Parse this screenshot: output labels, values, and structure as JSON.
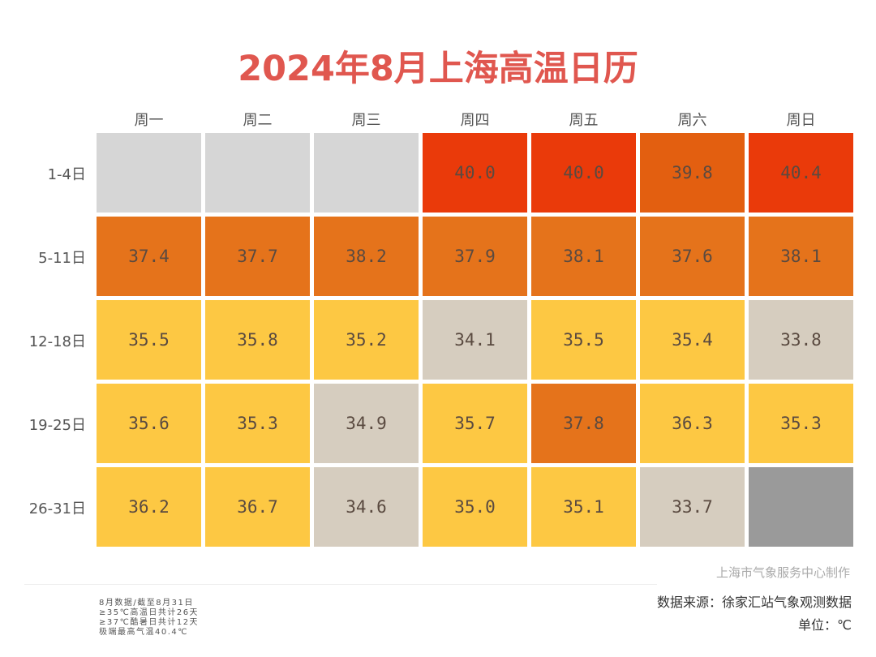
{
  "chart_data": {
    "type": "heatmap",
    "title": "2024年8月上海高温日历",
    "columns": [
      "周一",
      "周二",
      "周三",
      "周四",
      "周五",
      "周六",
      "周日"
    ],
    "rows": [
      "1-4日",
      "5-11日",
      "12-18日",
      "19-25日",
      "26-31日"
    ],
    "values": [
      [
        null,
        null,
        null,
        40.0,
        40.0,
        39.8,
        40.4
      ],
      [
        37.4,
        37.7,
        38.2,
        37.9,
        38.1,
        37.6,
        38.1
      ],
      [
        35.5,
        35.8,
        35.2,
        34.1,
        35.5,
        35.4,
        33.8
      ],
      [
        35.6,
        35.3,
        34.9,
        35.7,
        37.8,
        36.3,
        35.3
      ],
      [
        36.2,
        36.7,
        34.6,
        35.0,
        35.1,
        33.7,
        null
      ]
    ],
    "unit": "℃",
    "color_scale": [
      {
        "min": 40.0,
        "color": "#EA3A0A"
      },
      {
        "min": 39.5,
        "color": "#E35F10"
      },
      {
        "min": 37.0,
        "color": "#E5731B"
      },
      {
        "min": 35.0,
        "color": "#FDC843"
      },
      {
        "min": 0,
        "color": "#D6CDBF"
      }
    ],
    "empty_color_before_month": "#D6D6D6",
    "empty_color_after_month": "#9A9A9A"
  },
  "footer": {
    "maker": "上海市气象服务中心制作",
    "source": "数据来源：徐家汇站气象观测数据",
    "unit": "单位：℃",
    "notes": [
      "8月数据/截至8月31日",
      "≥35℃高温日共计26天",
      "≥37℃酷暑日共计12天",
      "极端最高气温40.4℃"
    ]
  }
}
